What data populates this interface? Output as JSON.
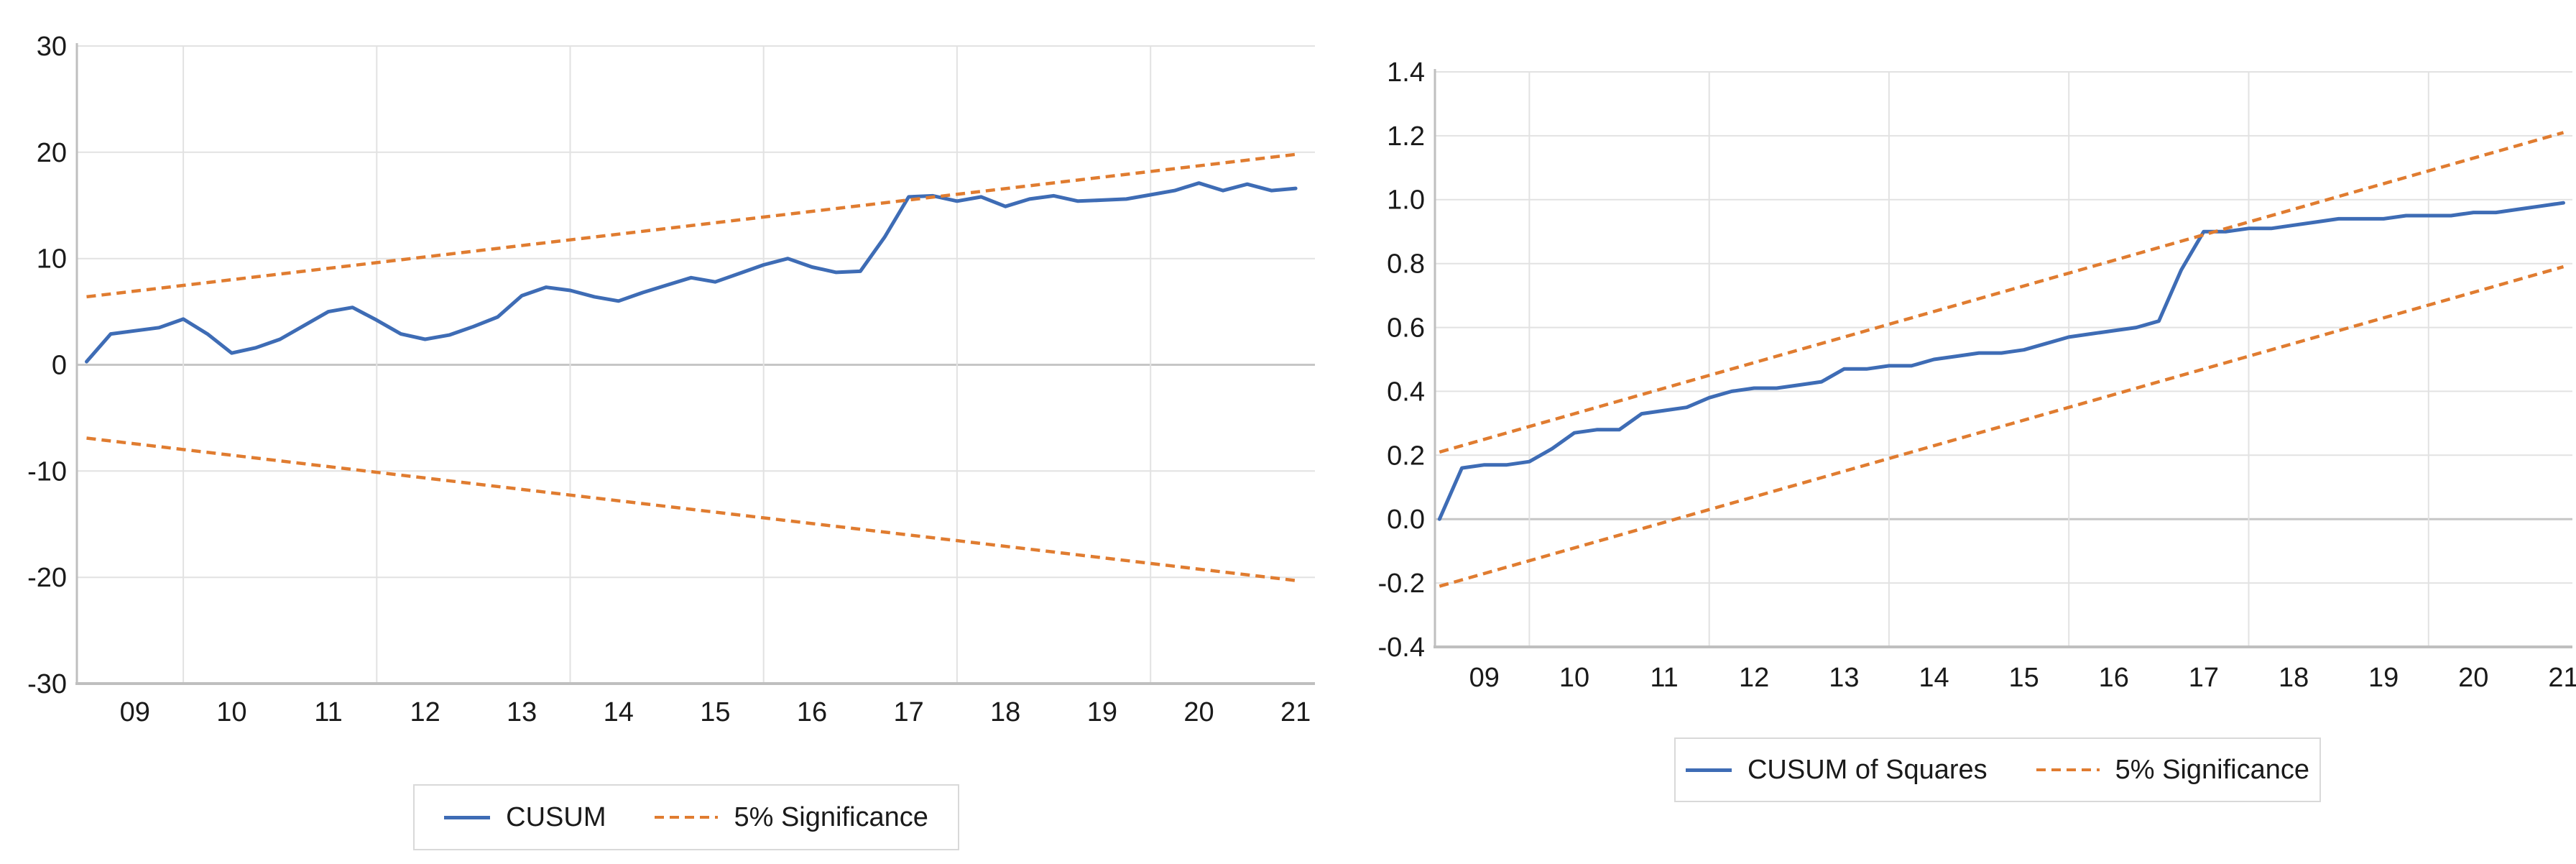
{
  "figure": {
    "background": "#ffffff",
    "description": "CUSUM and CUSUM of Squares stability test charts with 5% significance bands"
  },
  "colors": {
    "series_blue": "#3E6CB5",
    "series_orange": "#E07C30",
    "gridline": "#E2E2E2",
    "zero_line": "#C6C6C6",
    "axis_line": "#BFBFBF",
    "tick_text": "#1a1a1a",
    "legend_border": "#D9D9D9"
  },
  "chart_data": [
    {
      "type": "line",
      "title": "",
      "xlabel": "",
      "ylabel": "",
      "grid": true,
      "legend_position": "bottom",
      "xlim": [
        2008.4,
        2021.2
      ],
      "ylim": [
        -30,
        30
      ],
      "zero_line_value": 0,
      "y_ticks": [
        {
          "value": 30,
          "label": "30"
        },
        {
          "value": 20,
          "label": "20"
        },
        {
          "value": 10,
          "label": "10"
        },
        {
          "value": 0,
          "label": "0"
        },
        {
          "value": -10,
          "label": "-10"
        },
        {
          "value": -20,
          "label": "-20"
        },
        {
          "value": -30,
          "label": "-30"
        }
      ],
      "x_ticks": [
        {
          "year": 2009,
          "label": "09"
        },
        {
          "year": 2010,
          "label": "10"
        },
        {
          "year": 2011,
          "label": "11"
        },
        {
          "year": 2012,
          "label": "12"
        },
        {
          "year": 2013,
          "label": "13"
        },
        {
          "year": 2014,
          "label": "14"
        },
        {
          "year": 2015,
          "label": "15"
        },
        {
          "year": 2016,
          "label": "16"
        },
        {
          "year": 2017,
          "label": "17"
        },
        {
          "year": 2018,
          "label": "18"
        },
        {
          "year": 2019,
          "label": "19"
        },
        {
          "year": 2020,
          "label": "20"
        },
        {
          "year": 2021,
          "label": "21"
        }
      ],
      "x_gridlines": [
        2009.5,
        2011.5,
        2013.5,
        2015.5,
        2017.5,
        2019.5
      ],
      "series": [
        {
          "id": "cusum-line",
          "name": "CUSUM",
          "color": "#3E6CB5",
          "style": "solid",
          "x_start": 2008.5,
          "x_step": 0.25,
          "values": [
            0.3,
            2.9,
            3.2,
            3.5,
            4.3,
            2.9,
            1.1,
            1.6,
            2.4,
            3.7,
            5.0,
            5.4,
            4.2,
            2.9,
            2.4,
            2.8,
            3.6,
            4.5,
            6.5,
            7.3,
            7.0,
            6.4,
            6.0,
            6.8,
            7.5,
            8.2,
            7.8,
            8.6,
            9.4,
            10.0,
            9.2,
            8.7,
            8.8,
            12.0,
            15.8,
            15.9,
            15.4,
            15.8,
            14.9,
            15.6,
            15.9,
            15.4,
            15.5,
            15.6,
            16.0,
            16.4,
            17.1,
            16.4,
            17.0,
            16.4,
            16.6
          ]
        },
        {
          "id": "significance-upper-line",
          "name": "5% Significance",
          "color": "#E07C30",
          "style": "dashed",
          "points": [
            [
              2008.5,
              6.4
            ],
            [
              2021.0,
              19.8
            ]
          ]
        },
        {
          "id": "significance-lower-line",
          "name": "5% Significance",
          "color": "#E07C30",
          "style": "dashed",
          "points": [
            [
              2008.5,
              -6.9
            ],
            [
              2021.0,
              -20.3
            ]
          ]
        }
      ]
    },
    {
      "type": "line",
      "title": "",
      "xlabel": "",
      "ylabel": "",
      "grid": true,
      "legend_position": "bottom",
      "xlim": [
        2008.45,
        2021.1
      ],
      "ylim": [
        -0.4,
        1.4
      ],
      "zero_line_value": 0.0,
      "y_ticks": [
        {
          "value": 1.4,
          "label": "1.4"
        },
        {
          "value": 1.2,
          "label": "1.2"
        },
        {
          "value": 1.0,
          "label": "1.0"
        },
        {
          "value": 0.8,
          "label": "0.8"
        },
        {
          "value": 0.6,
          "label": "0.6"
        },
        {
          "value": 0.4,
          "label": "0.4"
        },
        {
          "value": 0.2,
          "label": "0.2"
        },
        {
          "value": 0.0,
          "label": "0.0"
        },
        {
          "value": -0.2,
          "label": "-0.2"
        },
        {
          "value": -0.4,
          "label": "-0.4"
        }
      ],
      "x_ticks": [
        {
          "year": 2009,
          "label": "09"
        },
        {
          "year": 2010,
          "label": "10"
        },
        {
          "year": 2011,
          "label": "11"
        },
        {
          "year": 2012,
          "label": "12"
        },
        {
          "year": 2013,
          "label": "13"
        },
        {
          "year": 2014,
          "label": "14"
        },
        {
          "year": 2015,
          "label": "15"
        },
        {
          "year": 2016,
          "label": "16"
        },
        {
          "year": 2017,
          "label": "17"
        },
        {
          "year": 2018,
          "label": "18"
        },
        {
          "year": 2019,
          "label": "19"
        },
        {
          "year": 2020,
          "label": "20"
        },
        {
          "year": 2021,
          "label": "21"
        }
      ],
      "x_gridlines": [
        2009.5,
        2011.5,
        2013.5,
        2015.5,
        2017.5,
        2019.5
      ],
      "series": [
        {
          "id": "cusum-of-squares-line",
          "name": "CUSUM of Squares",
          "color": "#3E6CB5",
          "style": "solid",
          "x_start": 2008.5,
          "x_step": 0.25,
          "values": [
            0.0,
            0.16,
            0.17,
            0.17,
            0.18,
            0.22,
            0.27,
            0.28,
            0.28,
            0.33,
            0.34,
            0.35,
            0.38,
            0.4,
            0.41,
            0.41,
            0.42,
            0.43,
            0.47,
            0.47,
            0.48,
            0.48,
            0.5,
            0.51,
            0.52,
            0.52,
            0.53,
            0.55,
            0.57,
            0.58,
            0.59,
            0.6,
            0.62,
            0.78,
            0.9,
            0.9,
            0.91,
            0.91,
            0.92,
            0.93,
            0.94,
            0.94,
            0.94,
            0.95,
            0.95,
            0.95,
            0.96,
            0.96,
            0.97,
            0.98,
            0.99
          ]
        },
        {
          "id": "significance-upper-line",
          "name": "5% Significance",
          "color": "#E07C30",
          "style": "dashed",
          "points": [
            [
              2008.5,
              0.21
            ],
            [
              2021.0,
              1.21
            ]
          ]
        },
        {
          "id": "significance-lower-line",
          "name": "5% Significance",
          "color": "#E07C30",
          "style": "dashed",
          "points": [
            [
              2008.5,
              -0.21
            ],
            [
              2021.0,
              0.79
            ]
          ]
        }
      ]
    }
  ]
}
